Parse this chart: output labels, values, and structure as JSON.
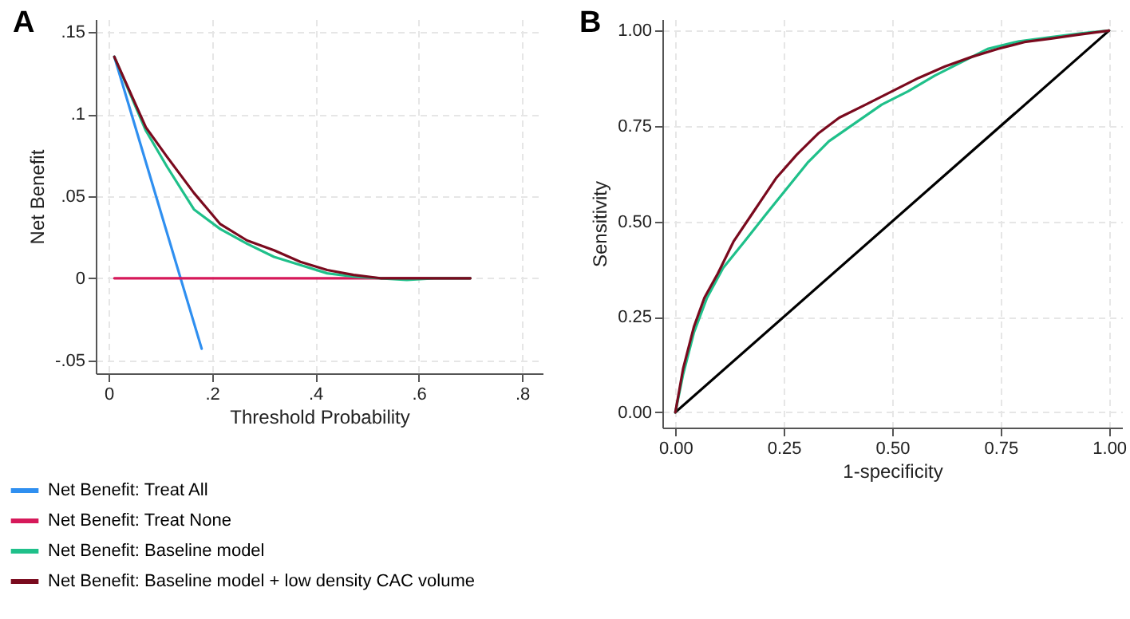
{
  "chart_data": [
    {
      "type": "line",
      "title": "A",
      "xlabel": "Threshold Probability",
      "ylabel": "Net Benefit",
      "xlim": [
        -0.025,
        0.84
      ],
      "ylim": [
        -0.058,
        0.158
      ],
      "xticks": [
        0,
        {
          "value": 0.2,
          "label": ".2"
        },
        {
          "value": 0.4,
          "label": ".4"
        },
        {
          "value": 0.6,
          "label": ".6"
        },
        {
          "value": 0.8,
          "label": ".8"
        }
      ],
      "yticks": [
        {
          "value": -0.05,
          "label": "-.05"
        },
        0,
        {
          "value": 0.05,
          "label": ".05"
        },
        {
          "value": 0.1,
          "label": ".1"
        },
        {
          "value": 0.15,
          "label": ".15"
        }
      ],
      "grid": true,
      "legend": "bottom left",
      "series": [
        {
          "name": "Net Benefit: Treat All",
          "color": "#2f8ff0",
          "x": [
            0.011,
            0.18
          ],
          "values": [
            0.135,
            -0.043
          ]
        },
        {
          "name": "Net Benefit: Treat None",
          "color": "#d6195a",
          "x": [
            0.011,
            0.7
          ],
          "values": [
            0,
            0
          ]
        },
        {
          "name": "Net Benefit: Baseline model",
          "color": "#1fc08a",
          "x": [
            0.011,
            0.072,
            0.113,
            0.165,
            0.216,
            0.268,
            0.32,
            0.371,
            0.423,
            0.474,
            0.526,
            0.577,
            0.629,
            0.7
          ],
          "values": [
            0.135,
            0.09,
            0.068,
            0.042,
            0.03,
            0.021,
            0.013,
            0.008,
            0.003,
            0.001,
            0,
            -0.001,
            0,
            0
          ]
        },
        {
          "name": "Net Benefit: Baseline model + low density CAC volume",
          "color": "#7a0a1e",
          "x": [
            0.011,
            0.072,
            0.113,
            0.165,
            0.216,
            0.268,
            0.32,
            0.371,
            0.423,
            0.474,
            0.526,
            0.629,
            0.7
          ],
          "values": [
            0.135,
            0.092,
            0.074,
            0.052,
            0.033,
            0.023,
            0.017,
            0.01,
            0.005,
            0.002,
            0,
            0,
            0
          ]
        }
      ]
    },
    {
      "type": "line",
      "title": "B",
      "xlabel": "1-specificity",
      "ylabel": "Sensitivity",
      "xlim": [
        -0.03,
        1.03
      ],
      "ylim": [
        -0.04,
        1.03
      ],
      "xticks": [
        {
          "value": 0,
          "label": "0.00"
        },
        {
          "value": 0.25,
          "label": "0.25"
        },
        {
          "value": 0.5,
          "label": "0.50"
        },
        {
          "value": 0.75,
          "label": "0.75"
        },
        {
          "value": 1,
          "label": "1.00"
        }
      ],
      "yticks": [
        {
          "value": 0,
          "label": "0.00"
        },
        {
          "value": 0.25,
          "label": "0.25"
        },
        {
          "value": 0.5,
          "label": "0.50"
        },
        {
          "value": 0.75,
          "label": "0.75"
        },
        {
          "value": 1,
          "label": "1.00"
        }
      ],
      "grid": true,
      "series": [
        {
          "color": "#000000",
          "x": [
            0,
            1
          ],
          "values": [
            0,
            1
          ]
        },
        {
          "color": "#1fc08a",
          "x": [
            0,
            0.018,
            0.043,
            0.073,
            0.11,
            0.159,
            0.207,
            0.256,
            0.305,
            0.354,
            0.415,
            0.476,
            0.537,
            0.598,
            0.659,
            0.72,
            0.793,
            0.866,
            0.939,
            1
          ],
          "values": [
            0,
            0.1,
            0.21,
            0.3,
            0.378,
            0.447,
            0.516,
            0.585,
            0.654,
            0.71,
            0.758,
            0.806,
            0.841,
            0.882,
            0.917,
            0.952,
            0.972,
            0.983,
            0.993,
            1
          ]
        },
        {
          "color": "#7a0a1e",
          "x": [
            0,
            0.018,
            0.043,
            0.067,
            0.098,
            0.134,
            0.183,
            0.232,
            0.28,
            0.329,
            0.378,
            0.439,
            0.5,
            0.561,
            0.622,
            0.683,
            0.744,
            0.805,
            0.866,
            0.927,
            1
          ],
          "values": [
            0,
            0.115,
            0.225,
            0.3,
            0.364,
            0.447,
            0.53,
            0.613,
            0.675,
            0.73,
            0.772,
            0.806,
            0.841,
            0.876,
            0.906,
            0.931,
            0.952,
            0.97,
            0.979,
            0.989,
            1
          ]
        }
      ]
    }
  ]
}
